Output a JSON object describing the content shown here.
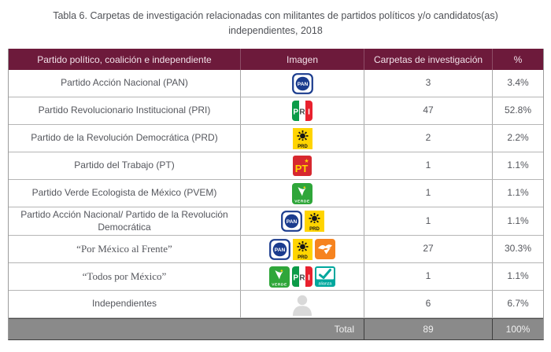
{
  "title": {
    "text": "Tabla 6. Carpetas de investigación relacionadas con militantes de partidos políticos y/o candidatos(as) independientes, 2018"
  },
  "colors": {
    "header_bg": "#6d1a3b",
    "total_bg": "#8a8a8a",
    "body_text": "#54565c"
  },
  "table": {
    "header": {
      "columns": [
        "Partido político, coalición e independiente",
        "Imagen",
        "Carpetas de investigación",
        "%"
      ]
    },
    "icons": {
      "pan": "pan-logo-icon",
      "pri": "pri-logo-icon",
      "prd": "prd-logo-icon",
      "pt": "pt-logo-icon",
      "pvem": "pvem-logo-icon",
      "mc": "movimiento-ciudadano-logo-icon",
      "na": "nueva-alianza-logo-icon",
      "independiente": "independent-person-icon"
    },
    "rows": [
      {
        "party": "Partido Acción Nacional (PAN)",
        "logos": [
          "pan"
        ],
        "carpetas": "3",
        "pct": "3.4%",
        "serif": false
      },
      {
        "party": "Partido Revolucionario Institucional (PRI)",
        "logos": [
          "pri"
        ],
        "carpetas": "47",
        "pct": "52.8%",
        "serif": false
      },
      {
        "party": "Partido de la Revolución Democrática (PRD)",
        "logos": [
          "prd"
        ],
        "carpetas": "2",
        "pct": "2.2%",
        "serif": false
      },
      {
        "party": "Partido del Trabajo (PT)",
        "logos": [
          "pt"
        ],
        "carpetas": "1",
        "pct": "1.1%",
        "serif": false
      },
      {
        "party": "Partido Verde Ecologista de México (PVEM)",
        "logos": [
          "pvem"
        ],
        "carpetas": "1",
        "pct": "1.1%",
        "serif": false
      },
      {
        "party": "Partido Acción Nacional/ Partido de la Revolución Democrática",
        "logos": [
          "pan",
          "prd"
        ],
        "carpetas": "1",
        "pct": "1.1%",
        "serif": false
      },
      {
        "party": "“Por México al Frente”",
        "logos": [
          "pan",
          "prd",
          "mc"
        ],
        "carpetas": "27",
        "pct": "30.3%",
        "serif": true
      },
      {
        "party": "“Todos por México”",
        "logos": [
          "pvem",
          "pri",
          "na"
        ],
        "carpetas": "1",
        "pct": "1.1%",
        "serif": true
      },
      {
        "party": "Independientes",
        "logos": [
          "independiente"
        ],
        "carpetas": "6",
        "pct": "6.7%",
        "serif": false
      }
    ],
    "total": {
      "label": "Total",
      "carpetas": "89",
      "pct": "100%"
    }
  }
}
